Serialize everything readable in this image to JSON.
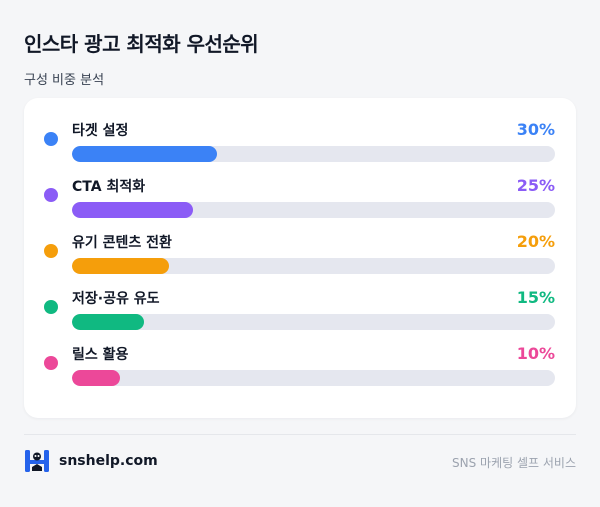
{
  "header": {
    "title": "인스타 광고 최적화 우선순위",
    "subtitle": "구성 비중 분석"
  },
  "chart_data": {
    "type": "bar",
    "orientation": "horizontal",
    "title": "인스타 광고 최적화 우선순위",
    "subtitle": "구성 비중 분석",
    "categories": [
      "타겟 설정",
      "CTA 최적화",
      "유기 콘텐츠 전환",
      "저장·공유 유도",
      "릴스 활용"
    ],
    "values": [
      30,
      25,
      20,
      15,
      10
    ],
    "value_labels": [
      "30%",
      "25%",
      "20%",
      "15%",
      "10%"
    ],
    "colors": [
      "#3b82f6",
      "#8b5cf6",
      "#f59e0b",
      "#10b981",
      "#ec4899"
    ],
    "xlim": [
      0,
      100
    ],
    "unit": "%",
    "grid": false,
    "legend": "none"
  },
  "footer": {
    "brand": "snshelp.com",
    "tagline": "SNS 마케팅 셀프 서비스",
    "logo_icon": "snshelp-logo-icon"
  }
}
